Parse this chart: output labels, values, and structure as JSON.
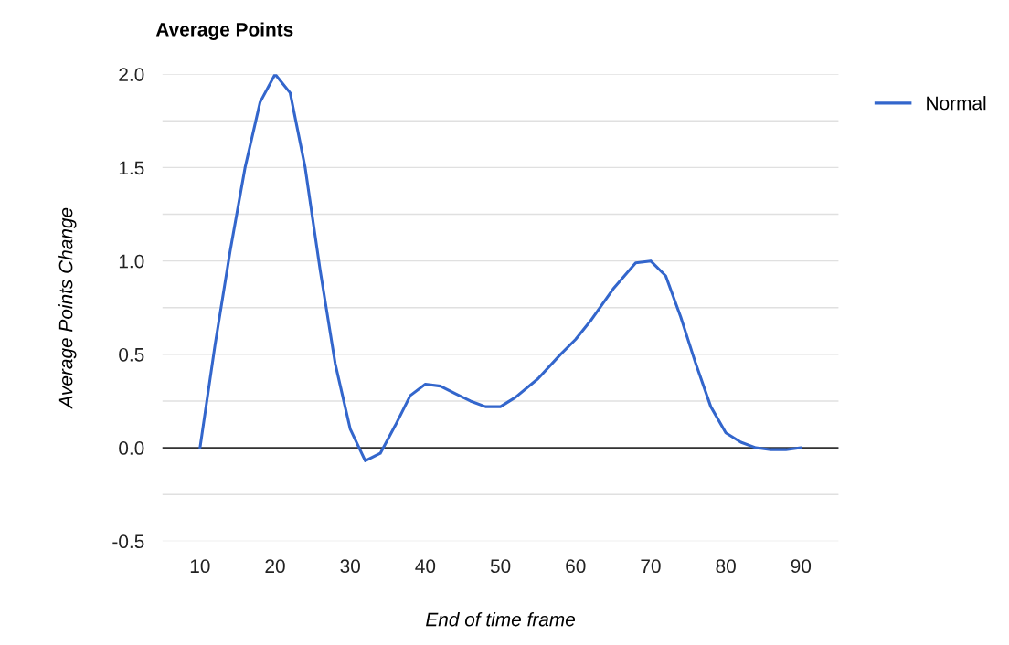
{
  "chart_data": {
    "type": "line",
    "title": "Average Points",
    "xlabel": "End of time frame",
    "ylabel": "Average Points Change",
    "x": [
      10,
      12,
      14,
      16,
      18,
      20,
      22,
      24,
      26,
      28,
      30,
      32,
      34,
      36,
      38,
      40,
      42,
      44,
      46,
      48,
      50,
      52,
      55,
      58,
      60,
      62,
      65,
      68,
      70,
      72,
      74,
      76,
      78,
      80,
      82,
      84,
      86,
      88,
      90
    ],
    "series": [
      {
        "name": "Normal",
        "color": "#3366cc",
        "values": [
          0,
          0.55,
          1.05,
          1.5,
          1.85,
          2.0,
          1.9,
          1.5,
          0.95,
          0.45,
          0.1,
          -0.07,
          -0.03,
          0.12,
          0.28,
          0.34,
          0.33,
          0.29,
          0.25,
          0.22,
          0.22,
          0.27,
          0.37,
          0.5,
          0.58,
          0.68,
          0.85,
          0.99,
          1.0,
          0.92,
          0.7,
          0.45,
          0.22,
          0.08,
          0.03,
          0.0,
          -0.01,
          -0.01,
          0.0
        ]
      }
    ],
    "xlim": [
      5,
      95
    ],
    "xticks": [
      10,
      20,
      30,
      40,
      50,
      60,
      70,
      80,
      90
    ],
    "ylim": [
      -0.5,
      2.0
    ],
    "yticks": [
      {
        "value": -0.5,
        "label": "-0.5"
      },
      {
        "value": -0.25,
        "label": null
      },
      {
        "value": 0,
        "label": "0.0"
      },
      {
        "value": 0.25,
        "label": null
      },
      {
        "value": 0.5,
        "label": "0.5"
      },
      {
        "value": 0.75,
        "label": null
      },
      {
        "value": 1.0,
        "label": "1.0"
      },
      {
        "value": 1.25,
        "label": null
      },
      {
        "value": 1.5,
        "label": "1.5"
      },
      {
        "value": 1.75,
        "label": null
      },
      {
        "value": 2.0,
        "label": "2.0"
      }
    ],
    "ref_lines": [
      {
        "axis": "y",
        "value": 0,
        "color": "#333333"
      }
    ],
    "grid": "y",
    "legend": "top right",
    "marker": "none",
    "line_style": "solid"
  }
}
